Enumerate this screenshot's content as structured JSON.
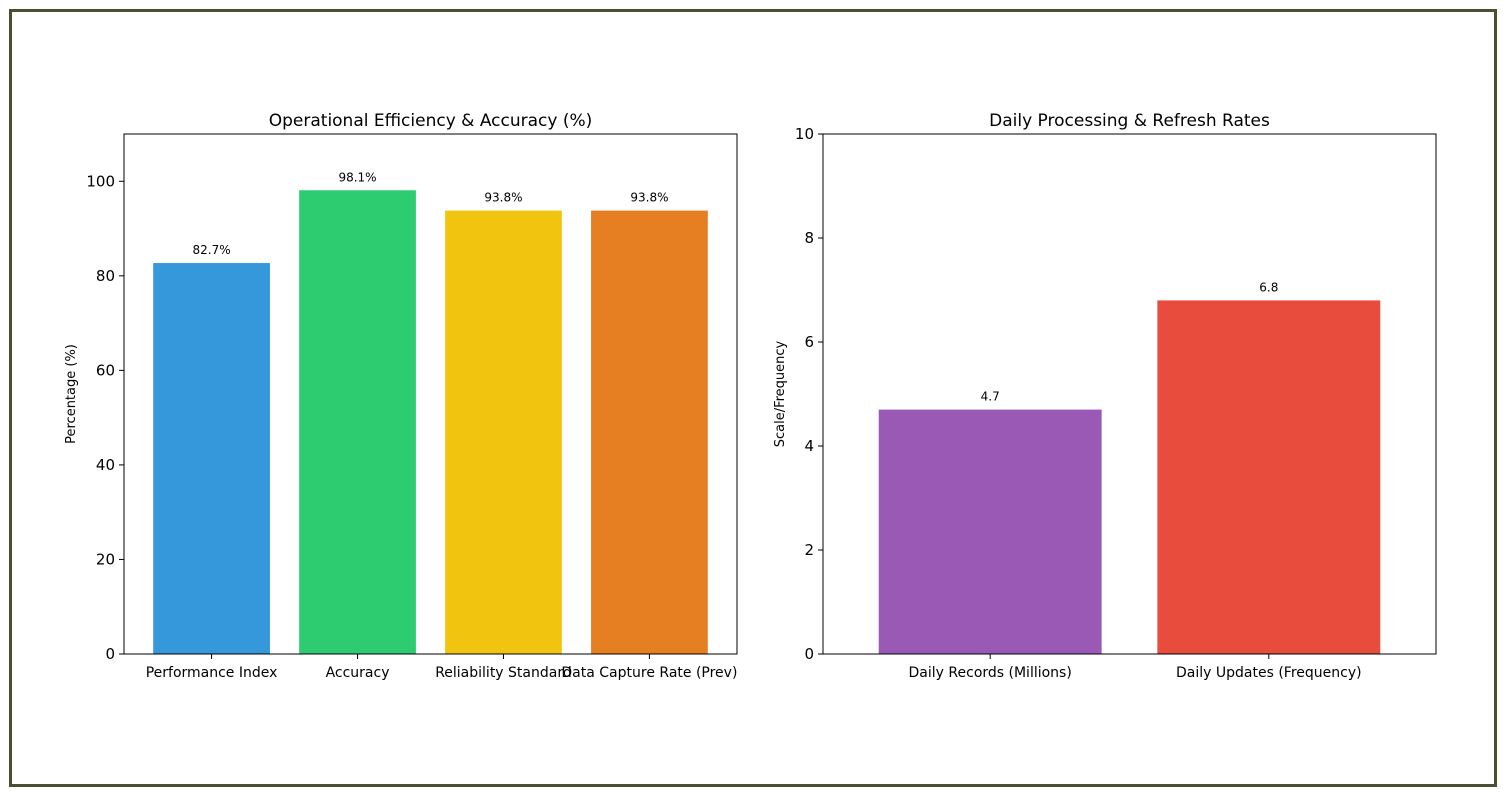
{
  "chart_data": [
    {
      "type": "bar",
      "title": "Operational Efficiency & Accuracy (%)",
      "xlabel": "",
      "ylabel": "Percentage (%)",
      "ylim": [
        0,
        110
      ],
      "yticks": [
        0,
        20,
        40,
        60,
        80,
        100
      ],
      "categories": [
        "Performance Index",
        "Accuracy",
        "Reliability Standard",
        "Data Capture Rate (Prev)"
      ],
      "values": [
        82.7,
        98.1,
        93.8,
        93.8
      ],
      "data_labels": [
        "82.7%",
        "98.1%",
        "93.8%",
        "93.8%"
      ],
      "colors": [
        "#3498db",
        "#2ecc71",
        "#f1c40f",
        "#e67e22"
      ],
      "grid": false
    },
    {
      "type": "bar",
      "title": "Daily Processing & Refresh Rates",
      "xlabel": "",
      "ylabel": "Scale/Frequency",
      "ylim": [
        0,
        10
      ],
      "yticks": [
        0,
        2,
        4,
        6,
        8,
        10
      ],
      "categories": [
        "Daily Records (Millions)",
        "Daily Updates (Frequency)"
      ],
      "values": [
        4.7,
        6.8
      ],
      "data_labels": [
        "4.7",
        "6.8"
      ],
      "colors": [
        "#9b59b6",
        "#e74c3c"
      ],
      "grid": false
    }
  ],
  "border_color": "#4b4f2f"
}
